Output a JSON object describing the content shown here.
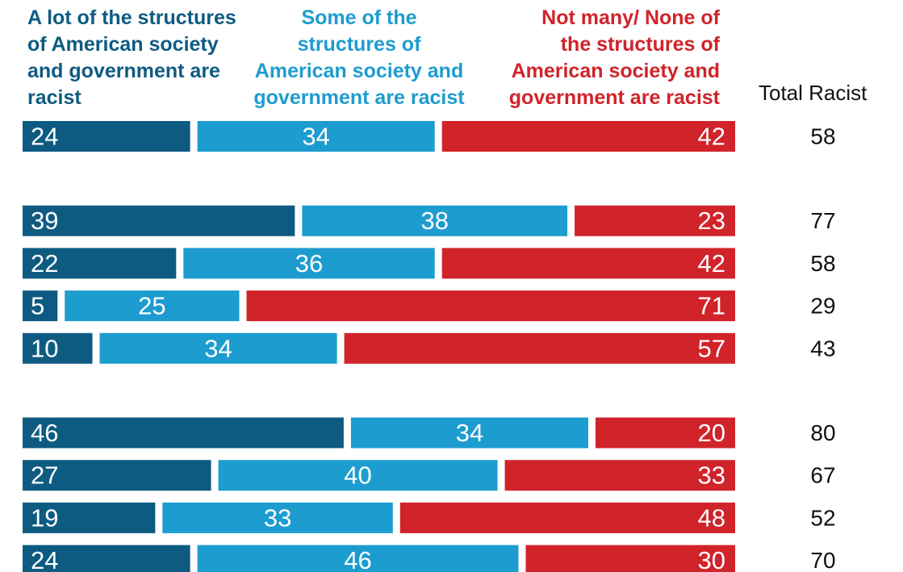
{
  "legend": {
    "a_lot": "A lot of the structures\nof American society\nand government are\nracist",
    "some": "Some of the\nstructures of\nAmerican society and\ngovernment are racist",
    "not_many": "Not many/ None of\nthe structures of\nAmerican society and\ngovernment are racist",
    "total_header": "Total Racist"
  },
  "colors": {
    "a_lot": "#0e5b82",
    "some": "#1d9ccf",
    "not_many": "#d1232a"
  },
  "chart_data": {
    "type": "bar",
    "orientation": "horizontal",
    "stacked": true,
    "series": [
      {
        "name": "A lot of the structures of American society and government are racist",
        "values": [
          24,
          39,
          22,
          5,
          10,
          46,
          27,
          19,
          24
        ]
      },
      {
        "name": "Some of the structures of American society and government are racist",
        "values": [
          34,
          38,
          36,
          25,
          34,
          34,
          40,
          33,
          46
        ]
      },
      {
        "name": "Not many/ None of the structures of American society and government are racist",
        "values": [
          42,
          23,
          42,
          71,
          57,
          20,
          33,
          48,
          30
        ]
      }
    ],
    "total_racist": [
      58,
      77,
      58,
      29,
      43,
      80,
      67,
      52,
      70
    ],
    "groups": [
      1,
      4,
      4
    ],
    "xlim": [
      0,
      100
    ],
    "legend_position": "top"
  }
}
